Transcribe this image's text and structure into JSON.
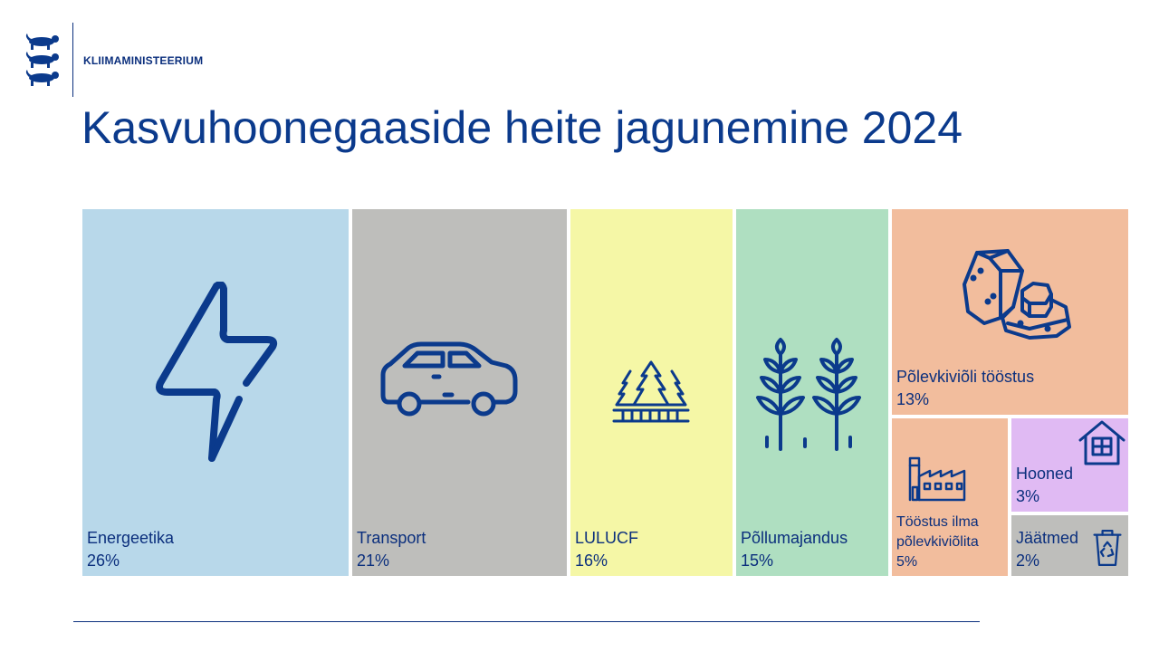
{
  "header": {
    "organization": "Kliimaministeerium",
    "organization_display": "KLIIMAMINISTEERIUM"
  },
  "title": "Kasvuhoonegaaside heite jagunemine 2024",
  "chart_data": {
    "type": "treemap",
    "title": "Kasvuhoonegaaside heite jagunemine 2024",
    "unit": "%",
    "items": [
      {
        "name": "Energeetika",
        "value": 26,
        "label": "26%",
        "color": "#b8d8ea",
        "icon": "lightning-icon"
      },
      {
        "name": "Transport",
        "value": 21,
        "label": "21%",
        "color": "#bebebb",
        "icon": "car-icon"
      },
      {
        "name": "LULUCF",
        "value": 16,
        "label": "16%",
        "color": "#f5f7a6",
        "icon": "forest-icon"
      },
      {
        "name": "Põllumajandus",
        "value": 15,
        "label": "15%",
        "color": "#afdfc1",
        "icon": "wheat-icon"
      },
      {
        "name": "Põlevkiviõli tööstus",
        "value": 13,
        "label": "13%",
        "color": "#f2bd9d",
        "icon": "oil-shale-rocks-icon"
      },
      {
        "name": "Tööstus ilma põlevkiviõlita",
        "name_lines": [
          "Tööstus ilma",
          "põlevkiviõlita"
        ],
        "value": 5,
        "label": "5%",
        "color": "#f2bd9d",
        "icon": "factory-icon"
      },
      {
        "name": "Hooned",
        "value": 3,
        "label": "3%",
        "color": "#e0baf3",
        "icon": "house-icon"
      },
      {
        "name": "Jäätmed",
        "value": 2,
        "label": "2%",
        "color": "#bebebb",
        "icon": "recycle-bin-icon"
      }
    ]
  }
}
